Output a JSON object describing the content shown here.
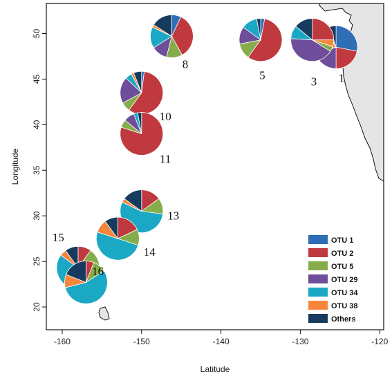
{
  "chart_data": {
    "type": "pie",
    "xlabel": "Latitude",
    "ylabel": "Longitude",
    "xlim": [
      -162,
      -119.5
    ],
    "ylim": [
      17.5,
      53.3
    ],
    "xticks": [
      -160,
      -150,
      -140,
      -130,
      -120
    ],
    "yticks": [
      20,
      25,
      30,
      35,
      40,
      45,
      50
    ],
    "legend_position": "bottom-right",
    "colors": {
      "OTU 1": "#2f6db5",
      "OTU 2": "#c0393f",
      "OTU 5": "#86ad4b",
      "OTU 29": "#6e4d9a",
      "OTU 34": "#1ba8c4",
      "OTU 38": "#f7863a",
      "Others": "#173b5e"
    },
    "legend": [
      "OTU 1",
      "OTU 2",
      "OTU 5",
      "OTU 29",
      "OTU 34",
      "OTU 38",
      "Others"
    ],
    "sites": [
      {
        "label": "1",
        "lon": -125.5,
        "lat": 48.5,
        "label_lon": -124.8,
        "label_lat": 44.7,
        "slices": [
          {
            "otu": "OTU 1",
            "value": 0.28
          },
          {
            "otu": "OTU 2",
            "value": 0.22
          },
          {
            "otu": "OTU 29",
            "value": 0.2
          },
          {
            "otu": "OTU 5",
            "value": 0.02
          },
          {
            "otu": "OTU 38",
            "value": 0.2
          },
          {
            "otu": "OTU 34",
            "value": 0.03
          },
          {
            "otu": "Others",
            "value": 0.05
          }
        ]
      },
      {
        "label": "3",
        "lon": -128.5,
        "lat": 49.3,
        "label_lon": -128.3,
        "label_lat": 44.3,
        "slices": [
          {
            "otu": "OTU 2",
            "value": 0.25
          },
          {
            "otu": "OTU 38",
            "value": 0.05
          },
          {
            "otu": "OTU 5",
            "value": 0.04
          },
          {
            "otu": "OTU 29",
            "value": 0.42
          },
          {
            "otu": "OTU 34",
            "value": 0.1
          },
          {
            "otu": "Others",
            "value": 0.14
          }
        ]
      },
      {
        "label": "5",
        "lon": -135.0,
        "lat": 49.3,
        "label_lon": -134.8,
        "label_lat": 45.0,
        "slices": [
          {
            "otu": "OTU 1",
            "value": 0.03
          },
          {
            "otu": "OTU 2",
            "value": 0.57
          },
          {
            "otu": "OTU 5",
            "value": 0.12
          },
          {
            "otu": "OTU 29",
            "value": 0.13
          },
          {
            "otu": "OTU 34",
            "value": 0.12
          },
          {
            "otu": "Others",
            "value": 0.03
          }
        ]
      },
      {
        "label": "8",
        "lon": -146.2,
        "lat": 49.7,
        "label_lon": -144.5,
        "label_lat": 46.2,
        "slices": [
          {
            "otu": "OTU 1",
            "value": 0.07
          },
          {
            "otu": "OTU 2",
            "value": 0.35
          },
          {
            "otu": "OTU 5",
            "value": 0.12
          },
          {
            "otu": "OTU 29",
            "value": 0.12
          },
          {
            "otu": "OTU 34",
            "value": 0.16
          },
          {
            "otu": "OTU 38",
            "value": 0.02
          },
          {
            "otu": "Others",
            "value": 0.16
          }
        ]
      },
      {
        "label": "10",
        "lon": -150.0,
        "lat": 43.5,
        "label_lon": -147.0,
        "label_lat": 40.5,
        "slices": [
          {
            "otu": "OTU 1",
            "value": 0.02
          },
          {
            "otu": "OTU 2",
            "value": 0.58
          },
          {
            "otu": "OTU 5",
            "value": 0.07
          },
          {
            "otu": "OTU 29",
            "value": 0.2
          },
          {
            "otu": "OTU 34",
            "value": 0.05
          },
          {
            "otu": "OTU 38",
            "value": 0.02
          },
          {
            "otu": "Others",
            "value": 0.06
          }
        ]
      },
      {
        "label": "11",
        "lon": -150.0,
        "lat": 39.0,
        "label_lon": -147.0,
        "label_lat": 35.8,
        "slices": [
          {
            "otu": "OTU 2",
            "value": 0.8
          },
          {
            "otu": "OTU 5",
            "value": 0.06
          },
          {
            "otu": "OTU 29",
            "value": 0.08
          },
          {
            "otu": "OTU 34",
            "value": 0.03
          },
          {
            "otu": "Others",
            "value": 0.03
          }
        ]
      },
      {
        "label": "13",
        "lon": -150.0,
        "lat": 30.5,
        "label_lon": -146.0,
        "label_lat": 29.6,
        "slices": [
          {
            "otu": "OTU 2",
            "value": 0.15
          },
          {
            "otu": "OTU 5",
            "value": 0.12
          },
          {
            "otu": "OTU 34",
            "value": 0.55
          },
          {
            "otu": "OTU 38",
            "value": 0.03
          },
          {
            "otu": "Others",
            "value": 0.15
          }
        ]
      },
      {
        "label": "14",
        "lon": -153.0,
        "lat": 27.5,
        "label_lon": -149.0,
        "label_lat": 25.6,
        "slices": [
          {
            "otu": "OTU 2",
            "value": 0.18
          },
          {
            "otu": "OTU 5",
            "value": 0.12
          },
          {
            "otu": "OTU 34",
            "value": 0.5
          },
          {
            "otu": "OTU 38",
            "value": 0.1
          },
          {
            "otu": "Others",
            "value": 0.1
          }
        ]
      },
      {
        "label": "15",
        "lon": -158.0,
        "lat": 24.3,
        "label_lon": -160.5,
        "label_lat": 27.2,
        "slices": [
          {
            "otu": "OTU 2",
            "value": 0.1
          },
          {
            "otu": "OTU 5",
            "value": 0.15
          },
          {
            "otu": "OTU 34",
            "value": 0.6
          },
          {
            "otu": "OTU 38",
            "value": 0.05
          },
          {
            "otu": "Others",
            "value": 0.1
          }
        ]
      },
      {
        "label": "16",
        "lon": -157.0,
        "lat": 22.7,
        "label_lon": -155.5,
        "label_lat": 23.5,
        "slices": [
          {
            "otu": "OTU 2",
            "value": 0.06
          },
          {
            "otu": "OTU 5",
            "value": 0.1
          },
          {
            "otu": "OTU 34",
            "value": 0.55
          },
          {
            "otu": "OTU 38",
            "value": 0.1
          },
          {
            "otu": "Others",
            "value": 0.19
          }
        ]
      }
    ]
  }
}
